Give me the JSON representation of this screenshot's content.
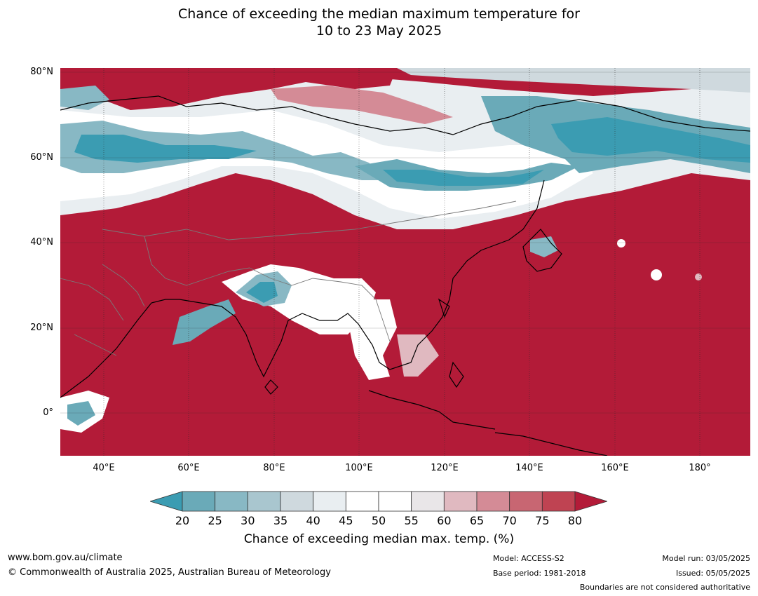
{
  "title_line1": "Chance of exceeding the median maximum temperature for",
  "title_line2": "10 to 23 May 2025",
  "lat_labels": [
    "80°N",
    "60°N",
    "40°N",
    "20°N",
    "0°"
  ],
  "lon_labels": [
    "40°E",
    "60°E",
    "80°E",
    "100°E",
    "120°E",
    "140°E",
    "160°E",
    "180°"
  ],
  "colorbar": {
    "ticks": [
      "20",
      "25",
      "30",
      "35",
      "40",
      "45",
      "50",
      "55",
      "60",
      "65",
      "70",
      "75",
      "80"
    ],
    "colors": [
      "#3b9cb2",
      "#6aaab8",
      "#88b8c4",
      "#a9c6cf",
      "#cfd9de",
      "#e9eef1",
      "#ffffff",
      "#ffffff",
      "#e9e6e8",
      "#e0b9c0",
      "#d48b96",
      "#c86672",
      "#bf4352",
      "#b31b38"
    ],
    "label": "Chance of exceeding median max. temp. (%)"
  },
  "colors": {
    "high": "#b31b38",
    "low": "#3b9cb2",
    "neutral": "#ffffff"
  },
  "footer": {
    "website": "www.bom.gov.au/climate",
    "copyright": "© Commonwealth of Australia 2025, Australian Bureau of Meteorology",
    "model": "Model: ACCESS-S2",
    "base_period": "Base period: 1981-2018",
    "model_run": "Model run: 03/05/2025",
    "issued": "Issued: 05/05/2025",
    "disclaimer": "Boundaries are not considered authoritative"
  }
}
